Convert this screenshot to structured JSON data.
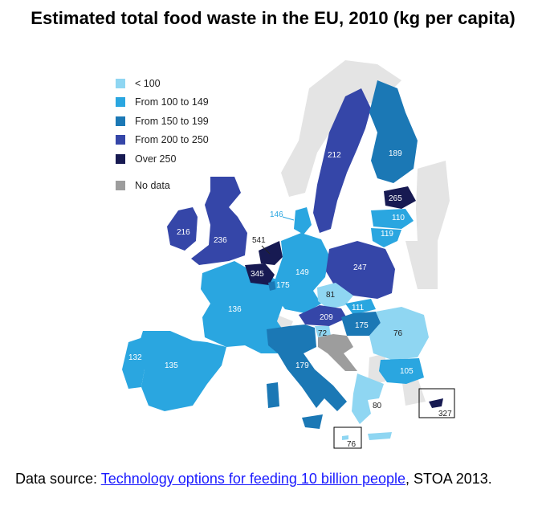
{
  "title": "Estimated total food waste in the EU, 2010 (kg per capita)",
  "legend": {
    "classes": [
      {
        "label": "< 100",
        "color": "#8fd6f2"
      },
      {
        "label": "From 100 to 149",
        "color": "#2aa6e0"
      },
      {
        "label": "From 150 to 199",
        "color": "#1b78b5"
      },
      {
        "label": "From 200 to 250",
        "color": "#3546a8"
      },
      {
        "label": "Over 250",
        "color": "#171a52"
      }
    ],
    "no_data": {
      "label": "No data",
      "color": "#9d9d9d"
    }
  },
  "countries": {
    "ireland": "216",
    "uk": "236",
    "netherlands": "541",
    "belgium": "345",
    "luxembourg": "175",
    "france": "136",
    "portugal": "132",
    "spain": "135",
    "germany": "149",
    "denmark": "146",
    "sweden": "212",
    "finland": "189",
    "estonia": "265",
    "latvia": "110",
    "lithuania": "119",
    "poland": "247",
    "czech": "81",
    "slovakia": "111",
    "austria": "209",
    "hungary": "175",
    "slovenia": "72",
    "romania": "76",
    "bulgaria": "105",
    "italy": "179",
    "greece": "80",
    "malta": "76",
    "cyprus": "327"
  },
  "footer": {
    "prefix": "Data source: ",
    "link_text": "Technology options for feeding 10 billion people",
    "suffix": ", STOA 2013."
  }
}
